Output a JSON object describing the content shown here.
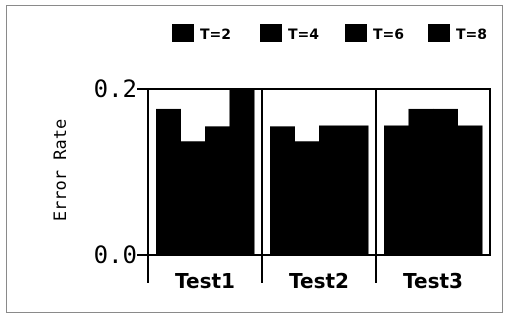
{
  "chart_data": {
    "type": "bar",
    "title": "",
    "xlabel": "",
    "ylabel": "Error Rate",
    "ylim": [
      0.0,
      0.2
    ],
    "yticks": [
      "0.0",
      "0.2"
    ],
    "categories": [
      "Test1",
      "Test2",
      "Test3"
    ],
    "series": [
      {
        "name": "T=2",
        "values": [
          0.176,
          0.155,
          0.156
        ]
      },
      {
        "name": "T=4",
        "values": [
          0.137,
          0.137,
          0.176
        ]
      },
      {
        "name": "T=6",
        "values": [
          0.155,
          0.156,
          0.176
        ]
      },
      {
        "name": "T=8",
        "values": [
          0.2,
          0.156,
          0.156
        ]
      }
    ],
    "bar_color": "#000000",
    "legend_placement": "top-right",
    "grid": false
  }
}
